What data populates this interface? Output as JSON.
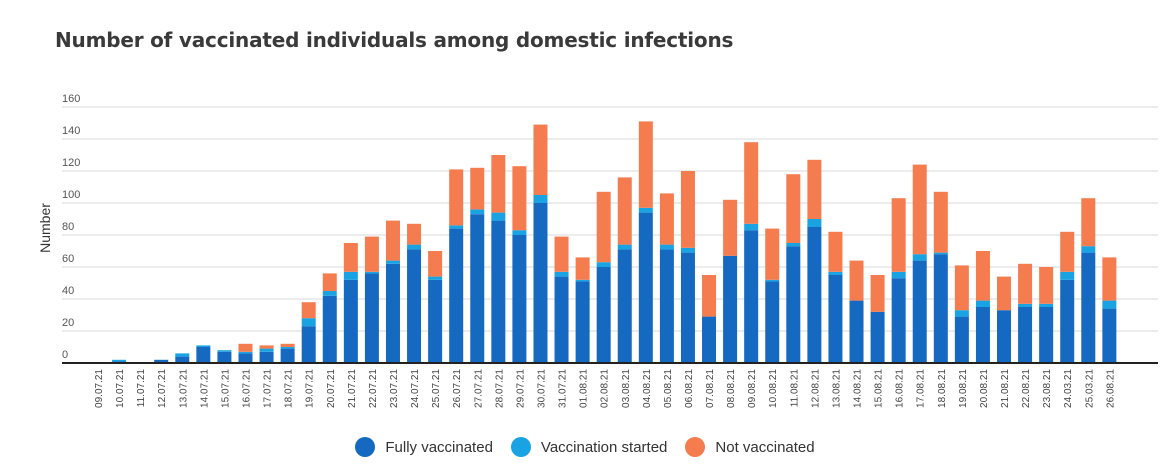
{
  "chart_data": {
    "type": "bar",
    "stacked": true,
    "title": "Number of vaccinated individuals among domestic infections",
    "ylabel": "Number",
    "ylim": [
      0,
      160
    ],
    "yticks": [
      0,
      20,
      40,
      60,
      80,
      100,
      120,
      140,
      160
    ],
    "grid": true,
    "legend_position": "bottom",
    "categories": [
      "09.07.21",
      "10.07.21",
      "11.07.21",
      "12.07.21",
      "13.07.21",
      "14.07.21",
      "15.07.21",
      "16.07.21",
      "17.07.21",
      "18.07.21",
      "19.07.21",
      "20.07.21",
      "21.07.21",
      "22.07.21",
      "23.07.21",
      "24.07.21",
      "25.07.21",
      "26.07.21",
      "27.07.21",
      "28.07.21",
      "29.07.21",
      "30.07.21",
      "31.07.21",
      "01.08.21",
      "02.08.21",
      "03.08.21",
      "04.08.21",
      "05.08.21",
      "06.08.21",
      "07.08.21",
      "08.08.21",
      "09.08.21",
      "10.08.21",
      "11.08.21",
      "12.08.21",
      "13.08.21",
      "14.08.21",
      "15.08.21",
      "16.08.21",
      "17.08.21",
      "18.08.21",
      "19.08.21",
      "20.08.21",
      "21.08.21",
      "22.08.21",
      "23.08.21",
      "24.03.21",
      "25.03.21",
      "26.08.21"
    ],
    "series": [
      {
        "name": "Fully vaccinated",
        "color": "#1569c0",
        "values": [
          0,
          1,
          0,
          2,
          4,
          10,
          7,
          6,
          7,
          9,
          23,
          42,
          52,
          56,
          62,
          71,
          52,
          84,
          93,
          89,
          80,
          100,
          54,
          51,
          60,
          71,
          94,
          71,
          69,
          29,
          67,
          83,
          51,
          73,
          85,
          55,
          39,
          32,
          53,
          64,
          68,
          29,
          35,
          33,
          35,
          35,
          52,
          69,
          34
        ]
      },
      {
        "name": "Vaccination started",
        "color": "#1aa3e3",
        "values": [
          0,
          1,
          0,
          0,
          2,
          1,
          1,
          1,
          2,
          1,
          5,
          3,
          5,
          1,
          2,
          3,
          2,
          2,
          3,
          5,
          3,
          5,
          3,
          1,
          3,
          3,
          3,
          3,
          3,
          0,
          0,
          4,
          1,
          2,
          5,
          2,
          0,
          0,
          4,
          4,
          1,
          4,
          4,
          0,
          2,
          2,
          5,
          4,
          5
        ]
      },
      {
        "name": "Not vaccinated",
        "color": "#f47c4e",
        "values": [
          0,
          0,
          0,
          0,
          0,
          0,
          0,
          5,
          2,
          2,
          10,
          11,
          18,
          22,
          25,
          13,
          16,
          35,
          26,
          36,
          40,
          44,
          22,
          14,
          44,
          42,
          54,
          32,
          48,
          26,
          35,
          51,
          32,
          43,
          37,
          25,
          25,
          23,
          46,
          56,
          38,
          28,
          31,
          21,
          25,
          23,
          25,
          30,
          27
        ]
      }
    ]
  }
}
